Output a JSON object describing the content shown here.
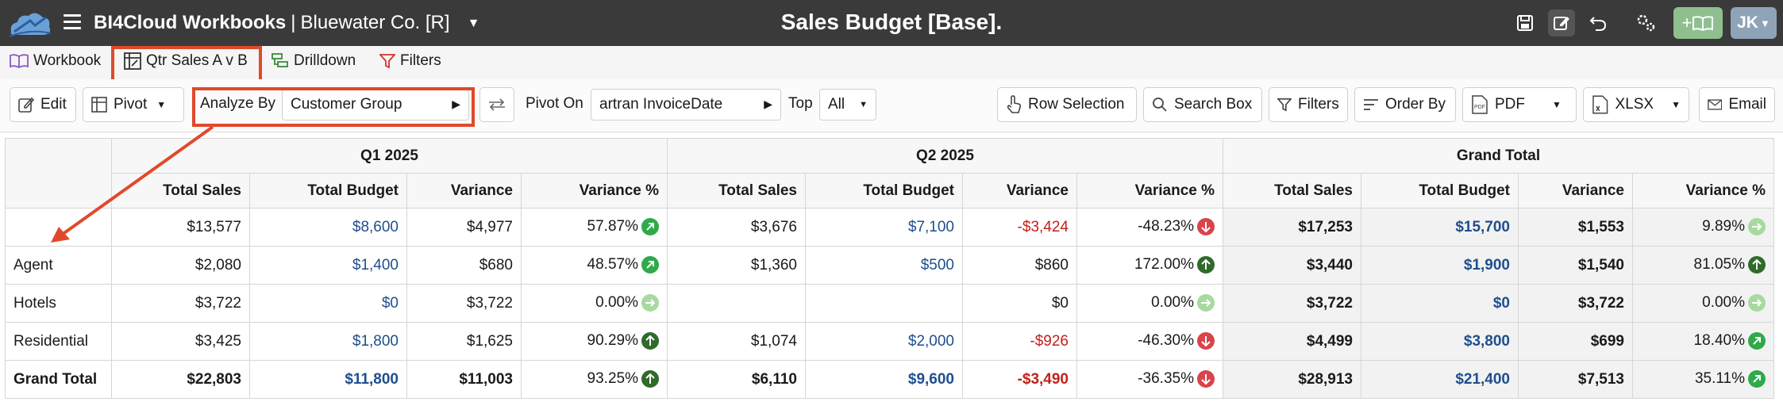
{
  "app": {
    "title": "BI4Cloud Workbooks",
    "separator": "|",
    "company": "Bluewater Co. [R]",
    "page_title": "Sales Budget [Base].",
    "user_initials": "JK",
    "add_book_label": "+"
  },
  "tabs": [
    {
      "label": "Workbook",
      "icon": "book-icon"
    },
    {
      "label": "Qtr Sales A v B",
      "icon": "pivot-icon"
    },
    {
      "label": "Drilldown",
      "icon": "drilldown-icon"
    },
    {
      "label": "Filters",
      "icon": "filter-icon"
    }
  ],
  "toolbar": {
    "edit": "Edit",
    "pivot": "Pivot",
    "analyze_by_label": "Analyze By",
    "analyze_by_value": "Customer Group",
    "pivot_on_label": "Pivot On",
    "pivot_on_value": "artran InvoiceDate",
    "top_label": "Top",
    "top_value": "All",
    "row_selection": "Row Selection",
    "search_box": "Search Box",
    "filters": "Filters",
    "order_by": "Order By",
    "pdf": "PDF",
    "xlsx": "XLSX",
    "email": "Email"
  },
  "table": {
    "groups": [
      "Q1 2025",
      "Q2 2025",
      "Grand Total"
    ],
    "columns": [
      "Total Sales",
      "Total Budget",
      "Variance",
      "Variance %"
    ],
    "rows": [
      {
        "label": "",
        "cells": [
          "$13,577",
          "$8,600",
          "$4,977",
          "57.87%",
          "$3,676",
          "$7,100",
          "-$3,424",
          "-48.23%",
          "$17,253",
          "$15,700",
          "$1,553",
          "9.89%"
        ],
        "ind": [
          "up",
          "down",
          "flat"
        ]
      },
      {
        "label": "Agent",
        "cells": [
          "$2,080",
          "$1,400",
          "$680",
          "48.57%",
          "$1,360",
          "$500",
          "$860",
          "172.00%",
          "$3,440",
          "$1,900",
          "$1,540",
          "81.05%"
        ],
        "ind": [
          "up",
          "upd",
          "upd"
        ]
      },
      {
        "label": "Hotels",
        "cells": [
          "$3,722",
          "$0",
          "$3,722",
          "0.00%",
          "",
          "",
          "$0",
          "0.00%",
          "$3,722",
          "$0",
          "$3,722",
          "0.00%"
        ],
        "ind": [
          "flat",
          "flat",
          "flat"
        ]
      },
      {
        "label": "Residential",
        "cells": [
          "$3,425",
          "$1,800",
          "$1,625",
          "90.29%",
          "$1,074",
          "$2,000",
          "-$926",
          "-46.30%",
          "$4,499",
          "$3,800",
          "$699",
          "18.40%"
        ],
        "ind": [
          "upd",
          "down",
          "up"
        ]
      },
      {
        "label": "Grand Total",
        "cells": [
          "$22,803",
          "$11,800",
          "$11,003",
          "93.25%",
          "$6,110",
          "$9,600",
          "-$3,490",
          "-36.35%",
          "$28,913",
          "$21,400",
          "$7,513",
          "35.11%"
        ],
        "ind": [
          "upd",
          "down",
          "up"
        ]
      }
    ]
  },
  "colors": {
    "titlebar": "#3a3a3a",
    "highlight": "#e04a2a",
    "budget_blue": "#1f4e8c",
    "negative_red": "#c0211a"
  }
}
